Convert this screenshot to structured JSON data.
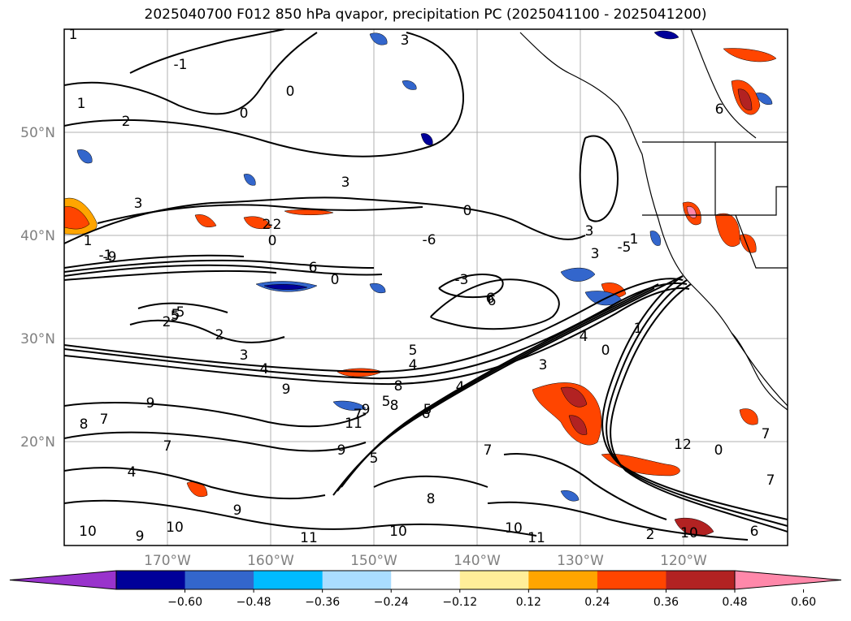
{
  "title": "2025040700 F012 850 hPa qvapor, precipitation PC (2025041100 - 2025041200)",
  "map": {
    "lat_labels": [
      "50°N",
      "40°N",
      "30°N",
      "20°N"
    ],
    "lon_labels": [
      "170°W",
      "160°W",
      "150°W",
      "140°W",
      "130°W",
      "120°W"
    ]
  },
  "colorbar": {
    "colors": [
      "#9933cc",
      "#000099",
      "#3366cc",
      "#00bbff",
      "#aaddff",
      "#ffffff",
      "#ffee99",
      "#ffa500",
      "#ff4500",
      "#b22222",
      "#ff88aa"
    ],
    "tick_labels": [
      "−0.60",
      "−0.48",
      "−0.36",
      "−0.24",
      "−0.12",
      "0.12",
      "0.24",
      "0.36",
      "0.48",
      "0.60"
    ]
  },
  "contour_labels": [
    "1",
    "2",
    "1",
    "0",
    "3",
    "-1",
    "0",
    "1",
    "3",
    "0",
    "-2",
    "-1",
    "2",
    "0",
    "3",
    "-3",
    "-6",
    "1",
    "6",
    "1",
    "-9",
    "3",
    "2",
    "-5",
    "0",
    "3",
    "0",
    "4",
    "5",
    "6",
    "5",
    "6",
    "3",
    "4",
    "2",
    "4",
    "6",
    "5",
    "6",
    "3",
    "7",
    "5",
    "8",
    "4",
    "0",
    "5",
    "7",
    "7",
    "9",
    "8",
    "9",
    "9",
    "5",
    "5",
    "9",
    "8",
    "7",
    "10",
    "8",
    "7",
    "10",
    "11",
    "10",
    "11",
    "11",
    "10",
    "2",
    "12",
    "10",
    "9",
    "9",
    "6",
    "7",
    "4"
  ]
}
